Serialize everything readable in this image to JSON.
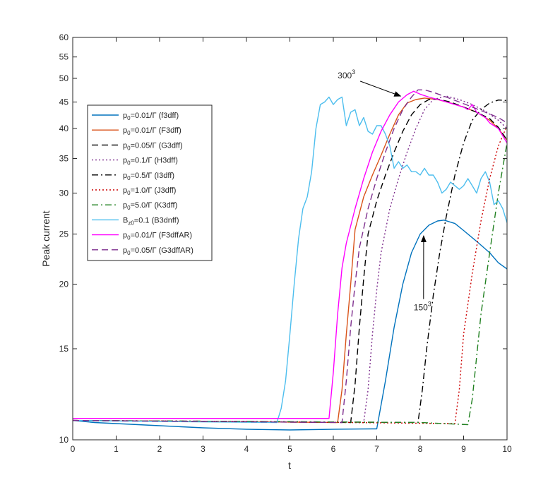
{
  "chart_data": {
    "type": "line",
    "title": "",
    "xlabel": "t",
    "ylabel": "Peak current",
    "xlim": [
      0,
      10
    ],
    "ylim": [
      10,
      60
    ],
    "yscale": "log",
    "grid": false,
    "legend_position": "upper-left",
    "xticks": [
      0,
      1,
      2,
      3,
      4,
      5,
      6,
      7,
      8,
      9,
      10
    ],
    "yticks": [
      10,
      15,
      20,
      25,
      30,
      35,
      40,
      45,
      50,
      55,
      60
    ],
    "annotations": [
      {
        "label": "300",
        "superscript": "3",
        "text_at": [
          6.1,
          50.0
        ],
        "arrow_to": [
          7.55,
          46.2
        ]
      },
      {
        "label": "150",
        "superscript": "3",
        "text_at": [
          7.85,
          17.8
        ],
        "arrow_to": [
          8.08,
          24.8
        ]
      }
    ],
    "series": [
      {
        "name": "p0=0.01/Γ (f3dff)",
        "label_main": "p",
        "label_sub": "0",
        "label_rest": "=0.01/Γ (f3dff)",
        "color": "#0072bd",
        "dash": "solid",
        "x": [
          0,
          0.5,
          1,
          2,
          3,
          4,
          5,
          6,
          6.9,
          7.0,
          7.2,
          7.4,
          7.6,
          7.8,
          8.0,
          8.2,
          8.4,
          8.55,
          8.8,
          9.0,
          9.3,
          9.6,
          9.8,
          10.0
        ],
        "y": [
          10.9,
          10.8,
          10.75,
          10.65,
          10.55,
          10.48,
          10.45,
          10.48,
          10.5,
          10.5,
          13.0,
          16.5,
          20.0,
          23.0,
          25.0,
          26.0,
          26.5,
          26.6,
          26.2,
          25.4,
          24.2,
          23.0,
          22.0,
          21.4
        ]
      },
      {
        "name": "p0=0.01/Γ (F3dff)",
        "label_main": "p",
        "label_sub": "0",
        "label_rest": "=0.01/Γ (F3dff)",
        "color": "#d95319",
        "dash": "solid",
        "x": [
          0,
          3,
          6.1,
          6.2,
          6.3,
          6.4,
          6.5,
          6.7,
          6.9,
          7.1,
          7.3,
          7.5,
          7.7,
          7.9,
          8.1,
          8.4,
          8.7,
          9.0,
          9.3,
          9.6,
          9.8,
          10.0
        ],
        "y": [
          10.9,
          10.85,
          10.8,
          12.5,
          16.0,
          20.0,
          25.5,
          29.5,
          32.5,
          35.5,
          39.0,
          42.5,
          44.8,
          45.5,
          45.8,
          45.5,
          44.8,
          44.0,
          43.0,
          41.5,
          40.0,
          38.0
        ]
      },
      {
        "name": "p0=0.05/Γ (G3dff)",
        "label_main": "p",
        "label_sub": "0",
        "label_rest": "=0.05/Γ (G3dff)",
        "color": "#000000",
        "dash": "dash",
        "x": [
          0,
          3,
          6.4,
          6.5,
          6.6,
          6.7,
          6.8,
          7.0,
          7.2,
          7.4,
          7.6,
          7.8,
          8.0,
          8.2,
          8.4,
          8.7,
          9.0,
          9.3,
          9.6,
          9.8,
          10.0
        ],
        "y": [
          10.9,
          10.85,
          10.8,
          12.8,
          16.5,
          20.5,
          25.0,
          29.0,
          32.5,
          36.0,
          39.5,
          42.5,
          44.5,
          45.5,
          45.6,
          45.0,
          44.0,
          43.0,
          41.8,
          40.2,
          38.0
        ]
      },
      {
        "name": "p0=0.1/Γ (H3dff)",
        "label_main": "p",
        "label_sub": "0",
        "label_rest": "=0.1/Γ (H3dff)",
        "color": "#7e2f8e",
        "dash": "dot",
        "x": [
          0,
          3,
          6.7,
          6.8,
          6.9,
          7.0,
          7.1,
          7.3,
          7.5,
          7.7,
          7.9,
          8.1,
          8.3,
          8.6,
          8.9,
          9.2,
          9.5,
          9.8,
          10.0
        ],
        "y": [
          10.9,
          10.85,
          10.8,
          12.5,
          16.0,
          19.5,
          23.0,
          28.0,
          32.0,
          36.0,
          40.0,
          43.5,
          45.5,
          46.2,
          45.5,
          44.5,
          43.2,
          41.5,
          40.0
        ]
      },
      {
        "name": "p0=0.5/Γ (I3dff)",
        "label_main": "p",
        "label_sub": "0",
        "label_rest": "=0.5/Γ (I3dff)",
        "color": "#000000",
        "dash": "dashdot",
        "x": [
          0,
          4,
          7.95,
          8.05,
          8.15,
          8.3,
          8.45,
          8.6,
          8.8,
          9.0,
          9.2,
          9.4,
          9.6,
          9.8,
          10.0
        ],
        "y": [
          10.9,
          10.85,
          10.8,
          12.5,
          15.0,
          19.0,
          23.0,
          27.0,
          32.5,
          37.5,
          41.5,
          43.5,
          44.8,
          45.4,
          45.3
        ]
      },
      {
        "name": "p0=1.0/Γ (J3dff)",
        "label_main": "p",
        "label_sub": "0",
        "label_rest": "=1.0/Γ (J3dff)",
        "color": "#cc0000",
        "dash": "dot",
        "x": [
          0,
          4,
          8.8,
          8.9,
          9.0,
          9.2,
          9.4,
          9.6,
          9.8,
          10.0
        ],
        "y": [
          10.9,
          10.85,
          10.75,
          12.5,
          16.0,
          21.0,
          26.5,
          32.0,
          37.0,
          40.5
        ]
      },
      {
        "name": "p0=5.0/Γ (K3dff)",
        "label_main": "p",
        "label_sub": "0",
        "label_rest": "=5.0/Γ (K3dff)",
        "color": "#208020",
        "dash": "dashdot",
        "x": [
          0,
          4,
          8,
          9.1,
          9.2,
          9.3,
          9.4,
          9.6,
          9.8,
          10.0
        ],
        "y": [
          10.9,
          10.85,
          10.8,
          10.7,
          12.0,
          14.5,
          17.5,
          23.0,
          30.0,
          37.5
        ]
      },
      {
        "name": "Bz0=0.1 (B3dnff)",
        "label_main": "B",
        "label_sub": "z0",
        "label_rest": "=0.1 (B3dnff)",
        "color": "#4dbeee",
        "dash": "solid",
        "x": [
          0,
          2,
          4.7,
          4.8,
          4.9,
          5.0,
          5.1,
          5.2,
          5.3,
          5.4,
          5.5,
          5.6,
          5.7,
          5.8,
          5.9,
          6.0,
          6.1,
          6.2,
          6.3,
          6.4,
          6.5,
          6.6,
          6.7,
          6.8,
          6.9,
          7.0,
          7.1,
          7.2,
          7.3,
          7.4,
          7.5,
          7.6,
          7.7,
          7.8,
          7.9,
          8.0,
          8.1,
          8.2,
          8.3,
          8.4,
          8.5,
          8.6,
          8.7,
          8.8,
          8.9,
          9.0,
          9.1,
          9.2,
          9.3,
          9.4,
          9.5,
          9.6,
          9.7,
          9.8,
          9.9,
          10.0
        ],
        "y": [
          10.9,
          10.85,
          10.8,
          11.5,
          13.0,
          16.0,
          20.0,
          24.5,
          28.0,
          29.5,
          33.0,
          40.0,
          44.5,
          45.0,
          46.0,
          44.5,
          45.5,
          46.0,
          40.5,
          43.0,
          43.5,
          40.5,
          42.0,
          39.5,
          39.0,
          40.5,
          40.5,
          39.0,
          37.0,
          33.5,
          34.5,
          33.5,
          34.0,
          33.0,
          33.0,
          32.5,
          33.5,
          32.5,
          32.5,
          31.5,
          30.0,
          30.5,
          31.5,
          31.0,
          30.5,
          31.0,
          32.0,
          31.0,
          30.0,
          32.0,
          33.0,
          31.5,
          28.5,
          29.0,
          28.0,
          26.3
        ]
      },
      {
        "name": "p0=0.01/Γ (F3dffAR)",
        "label_main": "p",
        "label_sub": "0",
        "label_rest": "=0.01/Γ (F3dffAR)",
        "color": "#ff00ff",
        "dash": "solid",
        "x": [
          0,
          3,
          5.9,
          6.0,
          6.1,
          6.2,
          6.3,
          6.5,
          6.7,
          6.9,
          7.1,
          7.3,
          7.5,
          7.7,
          7.85,
          8.0,
          8.2,
          8.5,
          8.8,
          9.0,
          9.1,
          9.2,
          9.3,
          9.4,
          9.5,
          9.6,
          9.8,
          10.0
        ],
        "y": [
          11.0,
          11.0,
          11.0,
          13.5,
          17.5,
          21.5,
          24.0,
          28.0,
          32.0,
          36.0,
          39.5,
          42.5,
          45.0,
          46.5,
          47.2,
          46.6,
          46.0,
          45.3,
          44.5,
          44.0,
          43.5,
          44.5,
          43.0,
          42.5,
          42.0,
          41.0,
          40.0,
          37.5
        ]
      },
      {
        "name": "p0=0.05/Γ (G3dffAR)",
        "label_main": "p",
        "label_sub": "0",
        "label_rest": "=0.05/Γ (G3dffAR)",
        "color": "#7e2f8e",
        "dash": "dash",
        "x": [
          0,
          3,
          6.2,
          6.3,
          6.4,
          6.5,
          6.6,
          6.8,
          7.0,
          7.2,
          7.4,
          7.6,
          7.8,
          7.95,
          8.1,
          8.3,
          8.6,
          8.9,
          9.2,
          9.5,
          9.8,
          10.0
        ],
        "y": [
          10.9,
          10.85,
          10.8,
          13.0,
          16.5,
          20.0,
          23.5,
          28.0,
          32.0,
          36.0,
          40.0,
          43.5,
          46.0,
          47.5,
          47.5,
          47.0,
          46.0,
          45.0,
          44.0,
          43.0,
          42.0,
          41.0
        ]
      }
    ]
  }
}
